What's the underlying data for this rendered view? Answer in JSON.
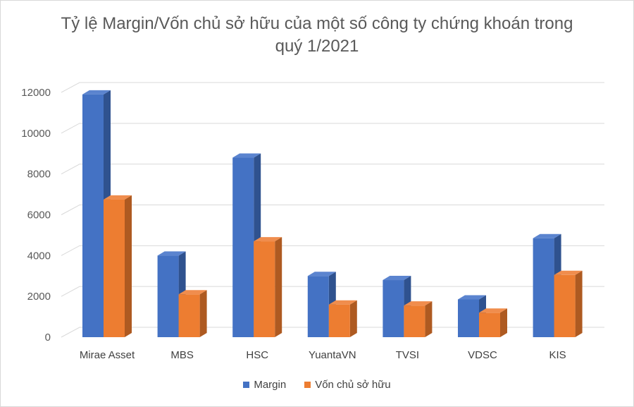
{
  "chart_data": {
    "type": "bar",
    "title_line1": "Tỷ lệ Margin/Vốn chủ sở hữu của một số công ty chứng khoán trong",
    "title_line2": "quý 1/2021",
    "categories": [
      "Mirae Asset",
      "MBS",
      "HSC",
      "YuantaVN",
      "TVSI",
      "VDSC",
      "KIS"
    ],
    "series": [
      {
        "name": "Margin",
        "values": [
          11900,
          4000,
          8800,
          3000,
          2800,
          1850,
          4850
        ],
        "color": "#4472c4",
        "side": "#2f528f",
        "top": "#5b84cf"
      },
      {
        "name": "Vốn chủ sở hữu",
        "values": [
          6750,
          2100,
          4700,
          1600,
          1550,
          1200,
          3050
        ],
        "color": "#ed7d31",
        "side": "#ae5a21",
        "top": "#f08d4d"
      }
    ],
    "yticks": [
      0,
      2000,
      4000,
      6000,
      8000,
      10000,
      12000
    ],
    "ylim": [
      0,
      12000
    ],
    "grid": true,
    "legend_position": "bottom"
  }
}
